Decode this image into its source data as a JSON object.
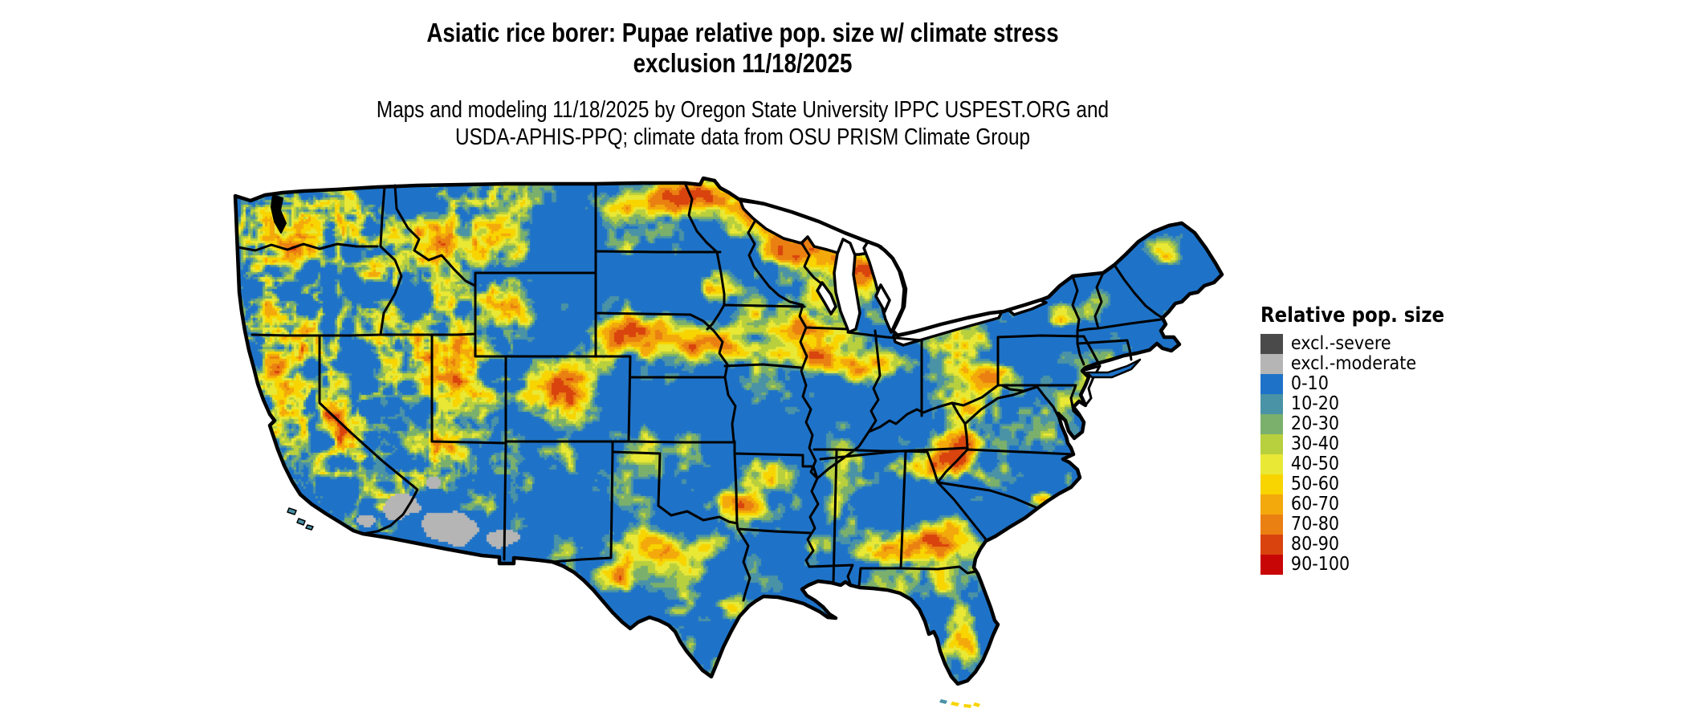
{
  "page": {
    "background": "#ffffff"
  },
  "title": {
    "line1": "Asiatic rice borer: Pupae relative pop. size w/ climate stress",
    "line2": "exclusion 11/18/2025"
  },
  "subtitle": {
    "line1": "Maps and modeling 11/18/2025 by Oregon State University IPPC USPEST.ORG and",
    "line2": "USDA-APHIS-PPQ; climate data from OSU PRISM Climate Group"
  },
  "legend": {
    "title": "Relative pop. size",
    "entries": [
      {
        "label": "excl.-severe",
        "color": "#4a4a4a"
      },
      {
        "label": "excl.-moderate",
        "color": "#b5b5b5"
      },
      {
        "label": "0-10",
        "color": "#1e73c8"
      },
      {
        "label": "10-20",
        "color": "#4a92a6"
      },
      {
        "label": "20-30",
        "color": "#7bb06c"
      },
      {
        "label": "30-40",
        "color": "#b8cf3e"
      },
      {
        "label": "40-50",
        "color": "#e9e835"
      },
      {
        "label": "50-60",
        "color": "#f8d400"
      },
      {
        "label": "60-70",
        "color": "#f3a90b"
      },
      {
        "label": "70-80",
        "color": "#ea8012"
      },
      {
        "label": "80-90",
        "color": "#d8430e"
      },
      {
        "label": "90-100",
        "color": "#c80606"
      }
    ]
  },
  "map": {
    "region": "Continental United States",
    "style": "gridded climate-model raster of relative population size with state boundaries",
    "dominant_class": "0-10",
    "boundary_color": "#000000"
  }
}
